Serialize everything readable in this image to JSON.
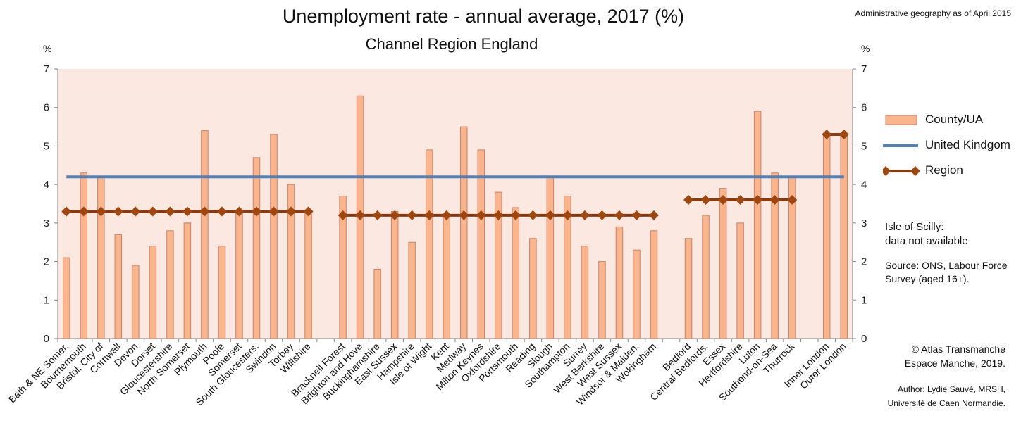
{
  "header": {
    "title": "Unemployment rate - annual average, 2017 (%)",
    "subtitle": "Channel Region England",
    "admin_note": "Administrative geography as of April 2015"
  },
  "legend": {
    "county": "County/UA",
    "uk": "United Kindgom",
    "region": "Region"
  },
  "notes": {
    "scilly_line1": "Isle of Scilly:",
    "scilly_line2": "data not available",
    "source_line1": "Source: ONS, Labour Force",
    "source_line2": "Survey (aged 16+).",
    "copyright_line1": "© Atlas Transmanche",
    "copyright_line2": "Espace Manche, 2019.",
    "author_line1": "Author: Lydie Sauvé, MRSH,",
    "author_line2": "Université de Caen Normandie."
  },
  "colors": {
    "bar_fill": "#fbb58c",
    "bar_stroke": "#c9826a",
    "plot_bg": "#fbe9e1",
    "uk_line": "#4f81bd",
    "region_line": "#8b3a10",
    "region_marker": "#a0460f"
  },
  "chart_data": {
    "type": "bar",
    "title": "Unemployment rate - annual average, 2017 (%)",
    "subtitle": "Channel Region England",
    "ylabel": "%",
    "ylabel_right": "%",
    "ylim": [
      0,
      7
    ],
    "yticks": [
      0,
      1,
      2,
      3,
      4,
      5,
      6,
      7
    ],
    "grid": false,
    "legend_position": "right",
    "categories": [
      "Bath & NE Somer.",
      "Bournemouth",
      "Bristol, City of",
      "Cornwall",
      "Devon",
      "Dorset",
      "Gloucestershire",
      "North Somerset",
      "Plymouth",
      "Poole",
      "Somerset",
      "South Gloucesters.",
      "Swindon",
      "Torbay",
      "Wiltshire",
      "",
      "Bracknell Forest",
      "Brighton and Hove",
      "Buckinghamshire",
      "East Sussex",
      "Hampshire",
      "Isle of Wight",
      "Kent",
      "Medway",
      "Milton Keynes",
      "Oxfordshire",
      "Portsmouth",
      "Reading",
      "Slough",
      "Southampton",
      "Surrey",
      "West Berkshire",
      "West Sussex",
      "Windsor & Maiden.",
      "Wokingham",
      "",
      "Bedford",
      "Central Bedfords.",
      "Essex",
      "Hertfordshire",
      "Luton",
      "Southend-on-Sea",
      "Thurrock",
      "",
      "Inner London",
      "Outer London"
    ],
    "series": [
      {
        "name": "County/UA",
        "type": "bar",
        "values": [
          2.1,
          4.3,
          4.2,
          2.7,
          1.9,
          2.4,
          2.8,
          3.0,
          5.4,
          2.4,
          3.3,
          4.7,
          5.3,
          4.0,
          3.3,
          null,
          3.7,
          6.3,
          1.8,
          3.3,
          2.5,
          4.9,
          3.2,
          5.5,
          4.9,
          3.8,
          3.4,
          2.6,
          4.2,
          3.7,
          2.4,
          2.0,
          2.9,
          2.3,
          2.8,
          null,
          2.6,
          3.2,
          3.9,
          3.0,
          5.9,
          4.3,
          4.2,
          null,
          5.3,
          5.3
        ]
      },
      {
        "name": "United Kindgom",
        "type": "line",
        "values": [
          4.2,
          4.2,
          4.2,
          4.2,
          4.2,
          4.2,
          4.2,
          4.2,
          4.2,
          4.2,
          4.2,
          4.2,
          4.2,
          4.2,
          4.2,
          4.2,
          4.2,
          4.2,
          4.2,
          4.2,
          4.2,
          4.2,
          4.2,
          4.2,
          4.2,
          4.2,
          4.2,
          4.2,
          4.2,
          4.2,
          4.2,
          4.2,
          4.2,
          4.2,
          4.2,
          4.2,
          4.2,
          4.2,
          4.2,
          4.2,
          4.2,
          4.2,
          4.2,
          4.2,
          4.2,
          4.2
        ]
      },
      {
        "name": "Region",
        "type": "line",
        "values": [
          3.3,
          3.3,
          3.3,
          3.3,
          3.3,
          3.3,
          3.3,
          3.3,
          3.3,
          3.3,
          3.3,
          3.3,
          3.3,
          3.3,
          3.3,
          null,
          3.2,
          3.2,
          3.2,
          3.2,
          3.2,
          3.2,
          3.2,
          3.2,
          3.2,
          3.2,
          3.2,
          3.2,
          3.2,
          3.2,
          3.2,
          3.2,
          3.2,
          3.2,
          3.2,
          null,
          3.6,
          3.6,
          3.6,
          3.6,
          3.6,
          3.6,
          3.6,
          null,
          5.3,
          5.3
        ]
      }
    ]
  }
}
